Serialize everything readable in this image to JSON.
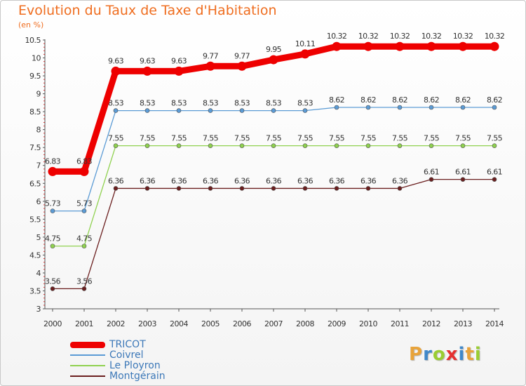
{
  "title": "Evolution du Taux de Taxe d'Habitation",
  "unit_label": "(en %)",
  "logo_text": "Proxiti",
  "logo_letters": [
    {
      "ch": "P",
      "color": "#e8a33a"
    },
    {
      "ch": "r",
      "color": "#3f87c9"
    },
    {
      "ch": "o",
      "color": "#9acd32"
    },
    {
      "ch": "x",
      "color": "#e53030"
    },
    {
      "ch": "i",
      "color": "#3f87c9"
    },
    {
      "ch": "t",
      "color": "#e8a33a"
    },
    {
      "ch": "i",
      "color": "#9acd32"
    }
  ],
  "chart_data": {
    "type": "line",
    "title": "Evolution du Taux de Taxe d'Habitation",
    "ylabel": "(en %)",
    "xlabel": "",
    "ylim": [
      3,
      10.5
    ],
    "yticks": [
      "3",
      "3.5",
      "4",
      "4.5",
      "5",
      "5.5",
      "6",
      "6.5",
      "7",
      "7.5",
      "8",
      "8.5",
      "9",
      "9.5",
      "10",
      "10.5"
    ],
    "categories": [
      "2000",
      "2001",
      "2002",
      "2003",
      "2004",
      "2005",
      "2006",
      "2007",
      "2008",
      "2009",
      "2010",
      "2011",
      "2012",
      "2013",
      "2014"
    ],
    "series": [
      {
        "name": "TRICOT",
        "color": "#ee0000",
        "emphasis": true,
        "values": [
          6.83,
          6.83,
          9.63,
          9.63,
          9.63,
          9.77,
          9.77,
          9.95,
          10.11,
          10.32,
          10.32,
          10.32,
          10.32,
          10.32,
          10.32
        ],
        "labels": [
          "6.83",
          "6.83",
          "9.63",
          "9.63",
          "9.63",
          "9.77",
          "9.77",
          "9.95",
          "10.11",
          "10.32",
          "10.32",
          "10.32",
          "10.32",
          "10.32",
          "10.32"
        ]
      },
      {
        "name": "Coivrel",
        "color": "#5b9bd5",
        "emphasis": false,
        "values": [
          5.73,
          5.73,
          8.53,
          8.53,
          8.53,
          8.53,
          8.53,
          8.53,
          8.53,
          8.62,
          8.62,
          8.62,
          8.62,
          8.62,
          8.62
        ],
        "labels": [
          "5.73",
          "5.73",
          "8.53",
          "8.53",
          "8.53",
          "8.53",
          "8.53",
          "8.53",
          "8.53",
          "8.62",
          "8.62",
          "8.62",
          "8.62",
          "8.62",
          "8.62"
        ]
      },
      {
        "name": "Le Ployron",
        "color": "#8fd14f",
        "emphasis": false,
        "values": [
          4.75,
          4.75,
          7.55,
          7.55,
          7.55,
          7.55,
          7.55,
          7.55,
          7.55,
          7.55,
          7.55,
          7.55,
          7.55,
          7.55,
          7.55
        ],
        "labels": [
          "4.75",
          "4.75",
          "7.55",
          "7.55",
          "7.55",
          "7.55",
          "7.55",
          "7.55",
          "7.55",
          "7.55",
          "7.55",
          "7.55",
          "7.55",
          "7.55",
          "7.55"
        ]
      },
      {
        "name": "Montgérain",
        "color": "#6b1f1f",
        "emphasis": false,
        "values": [
          3.56,
          3.56,
          6.36,
          6.36,
          6.36,
          6.36,
          6.36,
          6.36,
          6.36,
          6.36,
          6.36,
          6.36,
          6.61,
          6.61,
          6.61
        ],
        "labels": [
          "3.56",
          "3.56",
          "6.36",
          "6.36",
          "6.36",
          "6.36",
          "6.36",
          "6.36",
          "6.36",
          "6.36",
          "6.36",
          "6.36",
          "6.61",
          "6.61",
          "6.61"
        ]
      }
    ],
    "legend_position": "bottom-left",
    "grid": false
  }
}
